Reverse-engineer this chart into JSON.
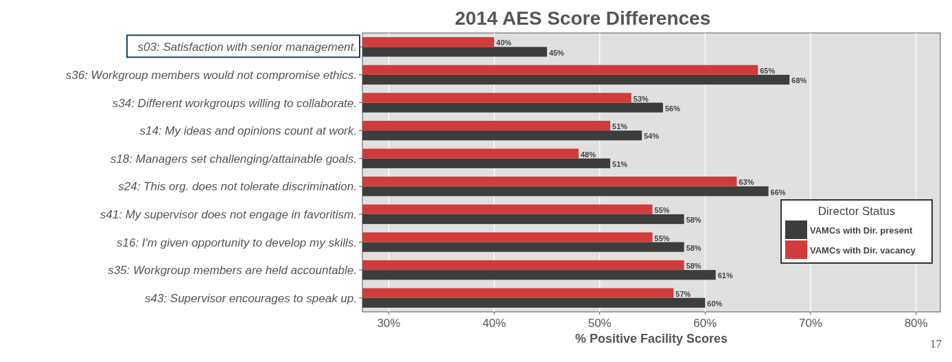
{
  "chart_data": {
    "type": "bar",
    "orientation": "horizontal",
    "title": "2014 AES Score Differences",
    "xlabel": "% Positive Facility Scores",
    "legend_title": "Director Status",
    "legend": "right",
    "grid": "x",
    "categories": [
      "s03: Satisfaction with senior management.",
      "s36: Workgroup members would not compromise ethics.",
      "s34: Different workgroups willing to collaborate.",
      "s14: My ideas and opinions count at work.",
      "s18: Managers set challenging/attainable goals.",
      "s24: This org. does not tolerate discrimination.",
      "s41: My supervisor does not engage in favoritism.",
      "s16: I'm given opportunity to develop my skills.",
      "s35: Workgroup members are held accountable.",
      "s43: Supervisor encourages to speak up."
    ],
    "series": [
      {
        "name": "VAMCs with Dir. present",
        "color": "#3d3d3d",
        "values": [
          45,
          68,
          56,
          54,
          51,
          66,
          58,
          58,
          61,
          60
        ],
        "value_labels": [
          "45%",
          "68%",
          "56%",
          "54%",
          "51%",
          "66%",
          "58%",
          "58%",
          "61%",
          "60%"
        ]
      },
      {
        "name": "VAMCs with Dir. vacancy",
        "color": "#d13b3b",
        "values": [
          40,
          65,
          53,
          51,
          48,
          63,
          55,
          55,
          58,
          57
        ],
        "value_labels": [
          "40%",
          "65%",
          "53%",
          "51%",
          "48%",
          "63%",
          "55%",
          "55%",
          "58%",
          "57%"
        ]
      }
    ],
    "xlim": [
      27.5,
      82.3
    ],
    "xticks": [
      {
        "value": 30,
        "label": "30%"
      },
      {
        "value": 40,
        "label": "40%"
      },
      {
        "value": 50,
        "label": "50%"
      },
      {
        "value": 60,
        "label": "60%"
      },
      {
        "value": 70,
        "label": "70%"
      },
      {
        "value": 80,
        "label": "80%"
      }
    ],
    "annotations": [
      "17"
    ]
  }
}
